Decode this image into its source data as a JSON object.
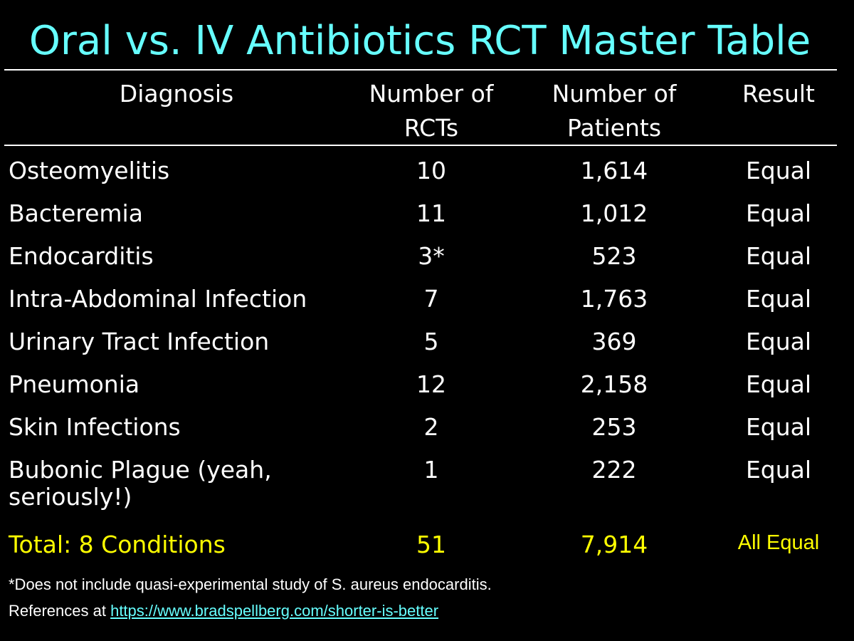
{
  "slide": {
    "title": "Oral vs. IV Antibiotics RCT Master Table",
    "colors": {
      "background": "#000000",
      "title": "#66ffff",
      "text": "#ffffff",
      "total": "#ffff00",
      "link": "#66ffff"
    }
  },
  "table": {
    "headers": {
      "diagnosis": "Diagnosis",
      "rcts_line1": "Number of",
      "rcts_line2": "RCTs",
      "patients_line1": "Number of",
      "patients_line2": "Patients",
      "result": "Result"
    },
    "rows": [
      {
        "diagnosis": "Osteomyelitis",
        "rcts": "10",
        "patients": "1,614",
        "result": "Equal"
      },
      {
        "diagnosis": "Bacteremia",
        "rcts": "11",
        "patients": "1,012",
        "result": "Equal"
      },
      {
        "diagnosis": "Endocarditis",
        "rcts": "3*",
        "patients": "523",
        "result": "Equal"
      },
      {
        "diagnosis": "Intra-Abdominal Infection",
        "rcts": "7",
        "patients": "1,763",
        "result": "Equal"
      },
      {
        "diagnosis": "Urinary Tract Infection",
        "rcts": "5",
        "patients": "369",
        "result": "Equal"
      },
      {
        "diagnosis": "Pneumonia",
        "rcts": "12",
        "patients": "2,158",
        "result": "Equal"
      },
      {
        "diagnosis": "Skin Infections",
        "rcts": "2",
        "patients": "253",
        "result": "Equal"
      },
      {
        "diagnosis": "Bubonic Plague (yeah, seriously!)",
        "rcts": "1",
        "patients": "222",
        "result": "Equal"
      }
    ],
    "total": {
      "diagnosis": "Total: 8 Conditions",
      "rcts": "51",
      "patients": "7,914",
      "result": "All Equal"
    }
  },
  "footer": {
    "footnote": "*Does not include quasi-experimental study of S. aureus endocarditis.",
    "references_prefix": "References at ",
    "references_link": "https://www.bradspellberg.com/shorter-is-better"
  }
}
